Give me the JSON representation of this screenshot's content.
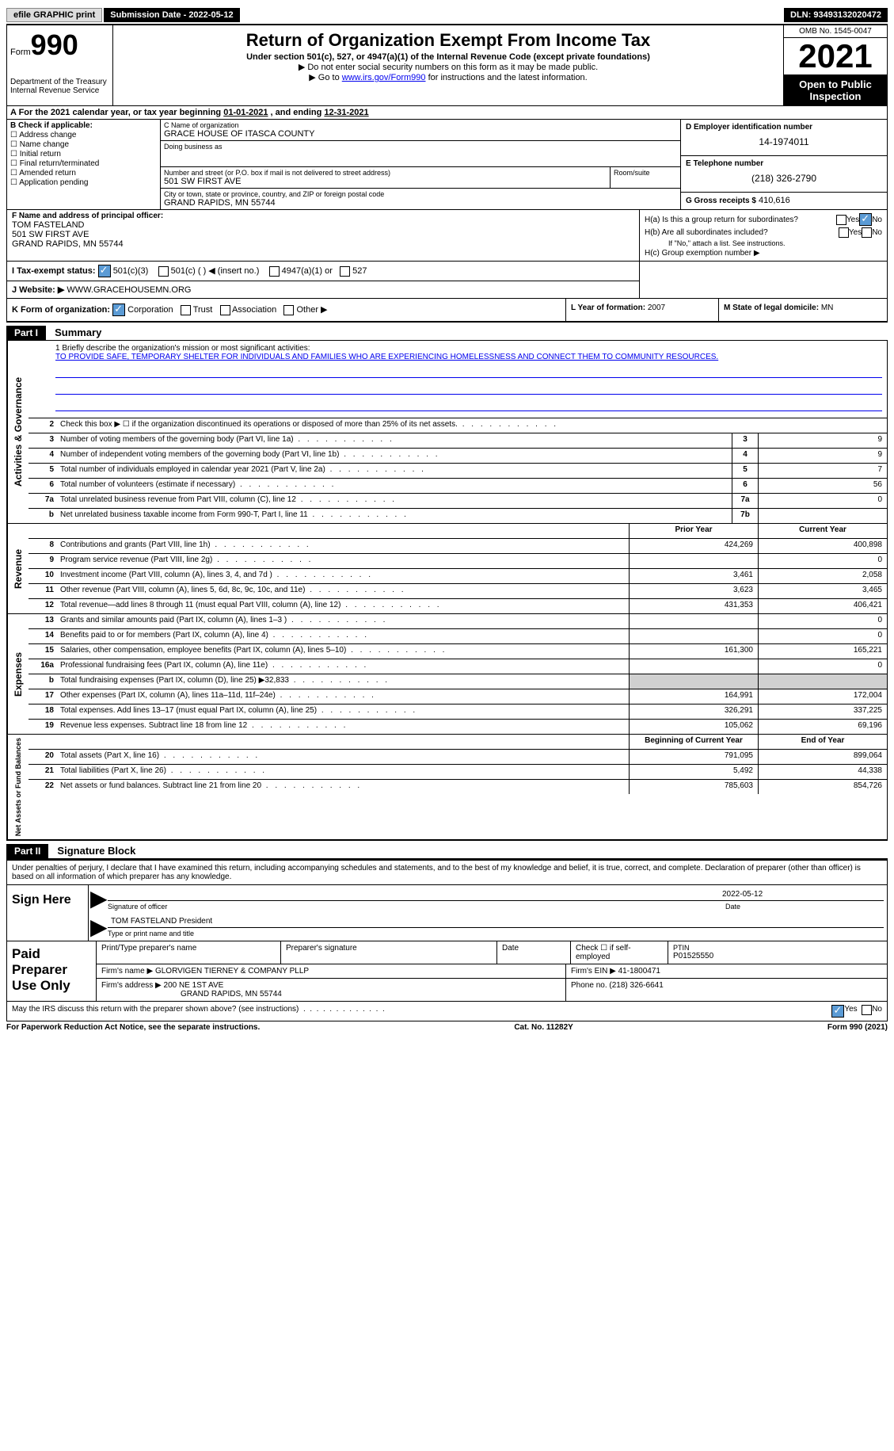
{
  "topbar": {
    "efile": "efile GRAPHIC print",
    "submission": "Submission Date - 2022-05-12",
    "dln": "DLN: 93493132020472"
  },
  "header": {
    "form_label": "Form",
    "form_num": "990",
    "dept": "Department of the Treasury Internal Revenue Service",
    "title": "Return of Organization Exempt From Income Tax",
    "subtitle": "Under section 501(c), 527, or 4947(a)(1) of the Internal Revenue Code (except private foundations)",
    "note1": "▶ Do not enter social security numbers on this form as it may be made public.",
    "note2_pre": "▶ Go to ",
    "note2_link": "www.irs.gov/Form990",
    "note2_post": " for instructions and the latest information.",
    "omb": "OMB No. 1545-0047",
    "year": "2021",
    "open": "Open to Public Inspection"
  },
  "rowA": {
    "text_pre": "A For the 2021 calendar year, or tax year beginning ",
    "begin": "01-01-2021",
    "text_mid": "   , and ending ",
    "end": "12-31-2021"
  },
  "boxB": {
    "label": "B Check if applicable:",
    "opts": [
      "Address change",
      "Name change",
      "Initial return",
      "Final return/terminated",
      "Amended return",
      "Application pending"
    ]
  },
  "boxC": {
    "name_lbl": "C Name of organization",
    "name": "GRACE HOUSE OF ITASCA COUNTY",
    "dba_lbl": "Doing business as",
    "street_lbl": "Number and street (or P.O. box if mail is not delivered to street address)",
    "street": "501 SW FIRST AVE",
    "room_lbl": "Room/suite",
    "city_lbl": "City or town, state or province, country, and ZIP or foreign postal code",
    "city": "GRAND RAPIDS, MN  55744"
  },
  "boxD": {
    "ein_lbl": "D Employer identification number",
    "ein": "14-1974011",
    "tel_lbl": "E Telephone number",
    "tel": "(218) 326-2790",
    "gross_lbl": "G Gross receipts $",
    "gross": "410,616"
  },
  "boxF": {
    "lbl": "F Name and address of principal officer:",
    "name": "TOM FASTELAND",
    "addr1": "501 SW FIRST AVE",
    "addr2": "GRAND RAPIDS, MN  55744"
  },
  "boxH": {
    "a_lbl": "H(a)  Is this a group return for subordinates?",
    "b_lbl": "H(b)  Are all subordinates included?",
    "b_note": "If \"No,\" attach a list. See instructions.",
    "c_lbl": "H(c)  Group exemption number ▶"
  },
  "boxI": {
    "lbl": "I   Tax-exempt status:",
    "opts": [
      "501(c)(3)",
      "501(c) (  ) ◀ (insert no.)",
      "4947(a)(1) or",
      "527"
    ]
  },
  "boxJ": {
    "lbl": "J   Website: ▶",
    "val": "WWW.GRACEHOUSEMN.ORG"
  },
  "boxK": {
    "lbl": "K Form of organization:",
    "opts": [
      "Corporation",
      "Trust",
      "Association",
      "Other ▶"
    ]
  },
  "boxL": {
    "lbl": "L Year of formation:",
    "val": "2007"
  },
  "boxM": {
    "lbl": "M State of legal domicile:",
    "val": "MN"
  },
  "part1": {
    "hdr": "Part I",
    "title": "Summary"
  },
  "mission": {
    "lbl": "1  Briefly describe the organization's mission or most significant activities:",
    "text": "TO PROVIDE SAFE, TEMPORARY SHELTER FOR INDIVIDUALS AND FAMILIES WHO ARE EXPERIENCING HOMELESSNESS AND CONNECT THEM TO COMMUNITY RESOURCES."
  },
  "activities": {
    "side": "Activities & Governance",
    "rows": [
      {
        "n": "2",
        "d": "Check this box ▶ ☐ if the organization discontinued its operations or disposed of more than 25% of its net assets.",
        "box": "",
        "v": ""
      },
      {
        "n": "3",
        "d": "Number of voting members of the governing body (Part VI, line 1a)",
        "box": "3",
        "v": "9"
      },
      {
        "n": "4",
        "d": "Number of independent voting members of the governing body (Part VI, line 1b)",
        "box": "4",
        "v": "9"
      },
      {
        "n": "5",
        "d": "Total number of individuals employed in calendar year 2021 (Part V, line 2a)",
        "box": "5",
        "v": "7"
      },
      {
        "n": "6",
        "d": "Total number of volunteers (estimate if necessary)",
        "box": "6",
        "v": "56"
      },
      {
        "n": "7a",
        "d": "Total unrelated business revenue from Part VIII, column (C), line 12",
        "box": "7a",
        "v": "0"
      },
      {
        "n": "b",
        "d": "Net unrelated business taxable income from Form 990-T, Part I, line 11",
        "box": "7b",
        "v": ""
      }
    ]
  },
  "revenue": {
    "side": "Revenue",
    "hdr_prior": "Prior Year",
    "hdr_curr": "Current Year",
    "rows": [
      {
        "n": "8",
        "d": "Contributions and grants (Part VIII, line 1h)",
        "p": "424,269",
        "c": "400,898"
      },
      {
        "n": "9",
        "d": "Program service revenue (Part VIII, line 2g)",
        "p": "",
        "c": "0"
      },
      {
        "n": "10",
        "d": "Investment income (Part VIII, column (A), lines 3, 4, and 7d )",
        "p": "3,461",
        "c": "2,058"
      },
      {
        "n": "11",
        "d": "Other revenue (Part VIII, column (A), lines 5, 6d, 8c, 9c, 10c, and 11e)",
        "p": "3,623",
        "c": "3,465"
      },
      {
        "n": "12",
        "d": "Total revenue—add lines 8 through 11 (must equal Part VIII, column (A), line 12)",
        "p": "431,353",
        "c": "406,421"
      }
    ]
  },
  "expenses": {
    "side": "Expenses",
    "rows": [
      {
        "n": "13",
        "d": "Grants and similar amounts paid (Part IX, column (A), lines 1–3 )",
        "p": "",
        "c": "0"
      },
      {
        "n": "14",
        "d": "Benefits paid to or for members (Part IX, column (A), line 4)",
        "p": "",
        "c": "0"
      },
      {
        "n": "15",
        "d": "Salaries, other compensation, employee benefits (Part IX, column (A), lines 5–10)",
        "p": "161,300",
        "c": "165,221"
      },
      {
        "n": "16a",
        "d": "Professional fundraising fees (Part IX, column (A), line 11e)",
        "p": "",
        "c": "0"
      },
      {
        "n": "b",
        "d": "Total fundraising expenses (Part IX, column (D), line 25) ▶32,833",
        "p": "shade",
        "c": "shade"
      },
      {
        "n": "17",
        "d": "Other expenses (Part IX, column (A), lines 11a–11d, 11f–24e)",
        "p": "164,991",
        "c": "172,004"
      },
      {
        "n": "18",
        "d": "Total expenses. Add lines 13–17 (must equal Part IX, column (A), line 25)",
        "p": "326,291",
        "c": "337,225"
      },
      {
        "n": "19",
        "d": "Revenue less expenses. Subtract line 18 from line 12",
        "p": "105,062",
        "c": "69,196"
      }
    ]
  },
  "netassets": {
    "side": "Net Assets or Fund Balances",
    "hdr_begin": "Beginning of Current Year",
    "hdr_end": "End of Year",
    "rows": [
      {
        "n": "20",
        "d": "Total assets (Part X, line 16)",
        "p": "791,095",
        "c": "899,064"
      },
      {
        "n": "21",
        "d": "Total liabilities (Part X, line 26)",
        "p": "5,492",
        "c": "44,338"
      },
      {
        "n": "22",
        "d": "Net assets or fund balances. Subtract line 21 from line 20",
        "p": "785,603",
        "c": "854,726"
      }
    ]
  },
  "part2": {
    "hdr": "Part II",
    "title": "Signature Block"
  },
  "signature": {
    "declare": "Under penalties of perjury, I declare that I have examined this return, including accompanying schedules and statements, and to the best of my knowledge and belief, it is true, correct, and complete. Declaration of preparer (other than officer) is based on all information of which preparer has any knowledge.",
    "sign_here": "Sign Here",
    "sig_officer_lbl": "Signature of officer",
    "date_lbl": "Date",
    "date_val": "2022-05-12",
    "name_title": "TOM FASTELAND  President",
    "name_title_lbl": "Type or print name and title"
  },
  "preparer": {
    "label": "Paid Preparer Use Only",
    "print_name_lbl": "Print/Type preparer's name",
    "sig_lbl": "Preparer's signature",
    "date_lbl": "Date",
    "check_lbl": "Check ☐ if self-employed",
    "ptin_lbl": "PTIN",
    "ptin": "P01525550",
    "firm_name_lbl": "Firm's name     ▶",
    "firm_name": "GLORVIGEN TIERNEY & COMPANY PLLP",
    "firm_ein_lbl": "Firm's EIN ▶",
    "firm_ein": "41-1800471",
    "firm_addr_lbl": "Firm's address ▶",
    "firm_addr1": "200 NE 1ST AVE",
    "firm_addr2": "GRAND RAPIDS, MN  55744",
    "phone_lbl": "Phone no.",
    "phone": "(218) 326-6641"
  },
  "footer": {
    "discuss": "May the IRS discuss this return with the preparer shown above? (see instructions)",
    "yes": "Yes",
    "no": "No",
    "paperwork": "For Paperwork Reduction Act Notice, see the separate instructions.",
    "cat": "Cat. No. 11282Y",
    "form": "Form 990 (2021)"
  }
}
